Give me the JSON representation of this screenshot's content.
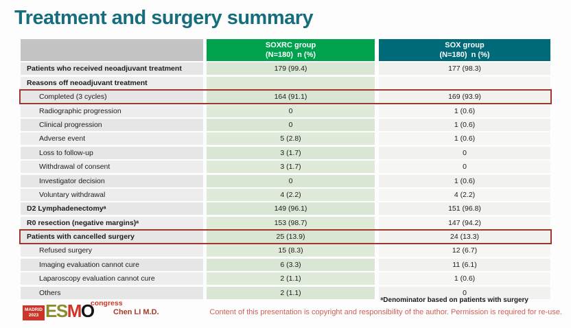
{
  "title": "Treatment and surgery summary",
  "table": {
    "header": {
      "label_col": "",
      "soxrc": {
        "line1": "SOXRC group",
        "line2": "(N=180)  n (%)"
      },
      "sox": {
        "line1": "SOX group",
        "line2": "(N=180)  n (%)"
      }
    },
    "rows": [
      {
        "label": "Patients who received neoadjuvant treatment",
        "soxrc": "179 (99.4)",
        "sox": "177 (98.3)",
        "bold": true,
        "indent": false,
        "highlight": false
      },
      {
        "label": "Reasons off neoadjuvant treatment",
        "soxrc": "",
        "sox": "",
        "bold": true,
        "indent": false,
        "highlight": false
      },
      {
        "label": "Completed (3 cycles)",
        "soxrc": "164 (91.1)",
        "sox": "169 (93.9)",
        "bold": false,
        "indent": true,
        "highlight": true
      },
      {
        "label": "Radiographic progression",
        "soxrc": "0",
        "sox": "1 (0.6)",
        "bold": false,
        "indent": true,
        "highlight": false
      },
      {
        "label": "Clinical progression",
        "soxrc": "0",
        "sox": "1 (0.6)",
        "bold": false,
        "indent": true,
        "highlight": false
      },
      {
        "label": "Adverse event",
        "soxrc": "5 (2.8)",
        "sox": "1 (0.6)",
        "bold": false,
        "indent": true,
        "highlight": false
      },
      {
        "label": "Loss to follow-up",
        "soxrc": "3 (1.7)",
        "sox": "0",
        "bold": false,
        "indent": true,
        "highlight": false
      },
      {
        "label": "Withdrawal of consent",
        "soxrc": "3 (1.7)",
        "sox": "0",
        "bold": false,
        "indent": true,
        "highlight": false
      },
      {
        "label": "Investigator decision",
        "soxrc": "0",
        "sox": "1 (0.6)",
        "bold": false,
        "indent": true,
        "highlight": false
      },
      {
        "label": "Voluntary withdrawal",
        "soxrc": "4 (2.2)",
        "sox": "4 (2.2)",
        "bold": false,
        "indent": true,
        "highlight": false
      },
      {
        "label": "D2 Lymphadenectomyᵃ",
        "soxrc": "149 (96.1)",
        "sox": "151 (96.8)",
        "bold": true,
        "indent": false,
        "highlight": false
      },
      {
        "label": "R0 resection (negative margins)ᵃ",
        "soxrc": "153 (98.7)",
        "sox": "147 (94.2)",
        "bold": true,
        "indent": false,
        "highlight": false
      },
      {
        "label": "Patients with cancelled surgery",
        "soxrc": "25 (13.9)",
        "sox": "24 (13.3)",
        "bold": true,
        "indent": false,
        "highlight": true
      },
      {
        "label": "Refused surgery",
        "soxrc": "15 (8.3)",
        "sox": "12 (6.7)",
        "bold": false,
        "indent": true,
        "highlight": false
      },
      {
        "label": "Imaging evaluation cannot cure",
        "soxrc": "6 (3.3)",
        "sox": "11 (6.1)",
        "bold": false,
        "indent": true,
        "highlight": false
      },
      {
        "label": "Laparoscopy evaluation cannot cure",
        "soxrc": "2 (1.1)",
        "sox": "1 (0.6)",
        "bold": false,
        "indent": true,
        "highlight": false
      },
      {
        "label": "Others",
        "soxrc": "2 (1.1)",
        "sox": "0",
        "bold": false,
        "indent": true,
        "highlight": false
      }
    ]
  },
  "footer": {
    "footnote": "ᵃDenominator based on patients with surgery",
    "copyright": "Content of this presentation is copyright and responsibility of the author.  Permission is required for re-use.",
    "author": "Chen LI M.D.",
    "logo": {
      "badge_line1": "MADRID",
      "badge_line2": "2023",
      "es": "ES",
      "m": "M",
      "o": "O",
      "congress": "congress"
    }
  },
  "colors": {
    "title_teal": "#166e7d",
    "soxrc_header_green": "#00a24d",
    "sox_header_teal": "#006a78",
    "highlight_red": "#a2352b",
    "soxrc_cell_green": "#d9e6d4",
    "copyright_red": "#cd6157",
    "esmo_red": "#cd3529",
    "esmo_olive": "#8b8c2b"
  }
}
